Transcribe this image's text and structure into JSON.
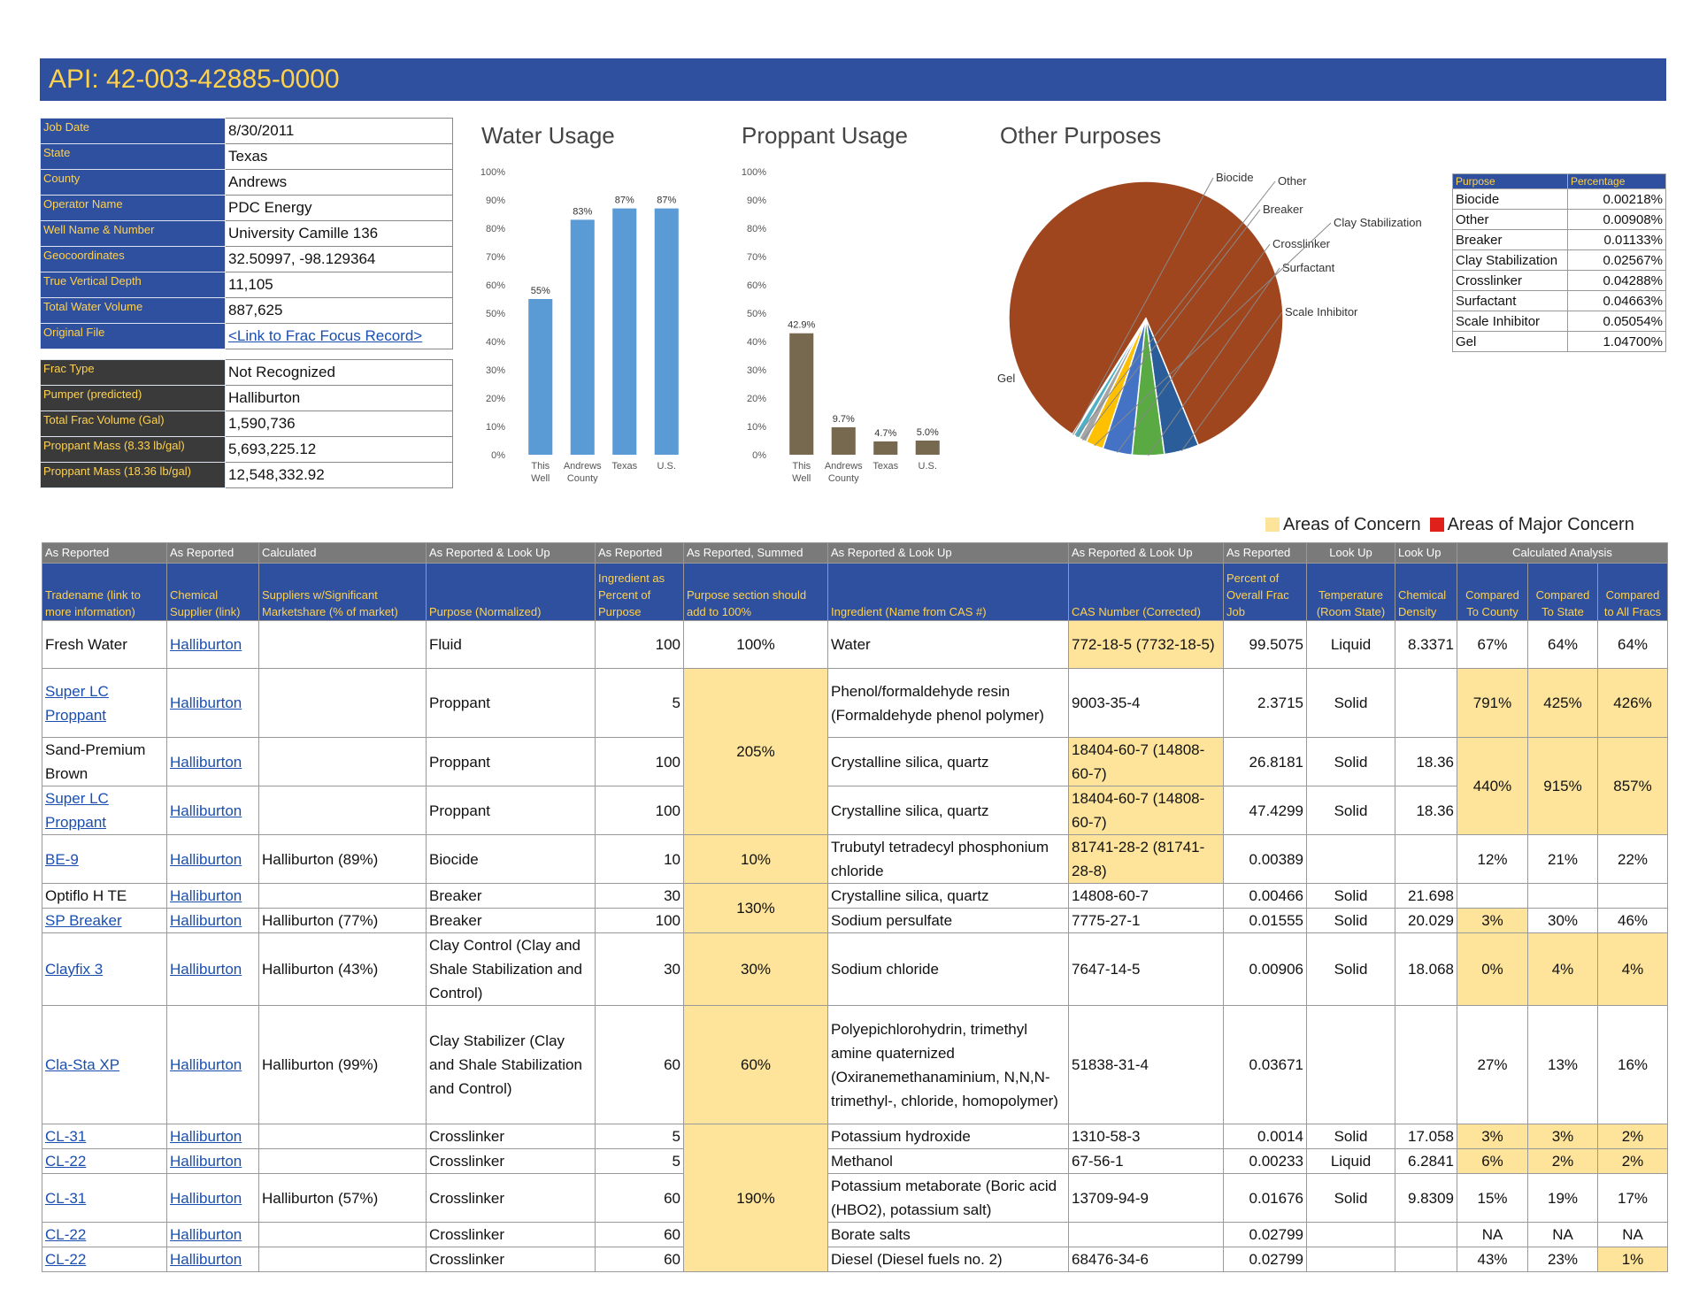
{
  "title": "API: 42-003-42885-0000",
  "info1": [
    {
      "label": "Job Date",
      "value": "8/30/2011"
    },
    {
      "label": "State",
      "value": "Texas"
    },
    {
      "label": "County",
      "value": "Andrews"
    },
    {
      "label": "Operator Name",
      "value": "PDC Energy"
    },
    {
      "label": "Well Name & Number",
      "value": "University Camille 136"
    },
    {
      "label": "Geocoordinates",
      "value": "32.50997, -98.129364"
    },
    {
      "label": "True Vertical Depth",
      "value": "11,105"
    },
    {
      "label": "Total Water Volume",
      "value": "887,625"
    },
    {
      "label": "Original File",
      "value": "<Link to Frac Focus Record>"
    }
  ],
  "info2": [
    {
      "label": "Frac Type",
      "value": "Not Recognized"
    },
    {
      "label": "Pumper (predicted)",
      "value": "Halliburton"
    },
    {
      "label": "Total Frac Volume (Gal)",
      "value": "1,590,736"
    },
    {
      "label": "Proppant Mass (8.33 lb/gal)",
      "value": "5,693,225.12"
    },
    {
      "label": "Proppant Mass (18.36 lb/gal)",
      "value": "12,548,332.92"
    }
  ],
  "chart_data": [
    {
      "type": "bar",
      "title": "Water Usage",
      "categories": [
        "This Well",
        "Andrews County",
        "Texas",
        "U.S."
      ],
      "values": [
        55,
        83,
        87,
        87
      ],
      "labels": [
        "55%",
        "83%",
        "87%",
        "87%"
      ],
      "ylim": [
        0,
        100
      ],
      "yticks": [
        "0%",
        "10%",
        "20%",
        "30%",
        "40%",
        "50%",
        "60%",
        "70%",
        "80%",
        "90%",
        "100%"
      ],
      "color": "#5b9bd5"
    },
    {
      "type": "bar",
      "title": "Proppant Usage",
      "categories": [
        "This Well",
        "Andrews County",
        "Texas",
        "U.S."
      ],
      "values": [
        42.9,
        9.7,
        4.7,
        5.0
      ],
      "labels": [
        "42.9%",
        "9.7%",
        "4.7%",
        "5.0%"
      ],
      "ylim": [
        0,
        100
      ],
      "yticks": [
        "0%",
        "10%",
        "20%",
        "30%",
        "40%",
        "50%",
        "60%",
        "70%",
        "80%",
        "90%",
        "100%"
      ],
      "color": "#76694f"
    },
    {
      "type": "pie",
      "title": "Other Purposes",
      "slices": [
        {
          "label": "Gel",
          "value": 1.047,
          "color": "#a0461f"
        },
        {
          "label": "Scale Inhibitor",
          "value": 0.05054,
          "color": "#2a5d9a"
        },
        {
          "label": "Surfactant",
          "value": 0.04663,
          "color": "#5aaa44"
        },
        {
          "label": "Crosslinker",
          "value": 0.04288,
          "color": "#4472c4"
        },
        {
          "label": "Clay Stabilization",
          "value": 0.02567,
          "color": "#ffc000"
        },
        {
          "label": "Breaker",
          "value": 0.01133,
          "color": "#a5a5a5"
        },
        {
          "label": "Other",
          "value": 0.00908,
          "color": "#4fb0c6"
        },
        {
          "label": "Biocide",
          "value": 0.00218,
          "color": "#ed7d31"
        }
      ]
    }
  ],
  "purpose_table": {
    "headers": [
      "Purpose",
      "Percentage"
    ],
    "rows": [
      [
        "Biocide",
        "0.00218%"
      ],
      [
        "Other",
        "0.00908%"
      ],
      [
        "Breaker",
        "0.01133%"
      ],
      [
        "Clay Stabilization",
        "0.02567%"
      ],
      [
        "Crosslinker",
        "0.04288%"
      ],
      [
        "Surfactant",
        "0.04663%"
      ],
      [
        "Scale Inhibitor",
        "0.05054%"
      ],
      [
        "Gel",
        "1.04700%"
      ]
    ]
  },
  "legend": {
    "concern": "Areas of Concern",
    "major": "Areas of Major Concern",
    "concern_color": "#fde49a",
    "major_color": "#e0201b"
  },
  "main": {
    "header1": [
      "As Reported",
      "As Reported",
      "Calculated",
      "As Reported & Look Up",
      "As Reported",
      "As Reported, Summed",
      "As Reported & Look Up",
      "As Reported & Look Up",
      "As Reported",
      "Look Up",
      "Look Up",
      "Calculated Analysis"
    ],
    "header2": [
      "Tradename (link to more information)",
      "Chemical Supplier (link)",
      "Suppliers w/Significant Marketshare (% of market)",
      "Purpose (Normalized)",
      "Ingredient as Percent of Purpose",
      "Purpose section should add to 100%",
      "Ingredient (Name from CAS #)",
      "CAS Number (Corrected)",
      "Percent of Overall Frac Job",
      "Temperature (Room State)",
      "Chemical Density",
      "Compared To County",
      "Compared To State",
      "Compared to All Fracs"
    ],
    "rows": [
      {
        "tradename": "Fresh Water",
        "supplier": "Halliburton",
        "share": "",
        "purpose": "Fluid",
        "pct": "100",
        "sum": "100%",
        "ingredient": "Water",
        "cas": "772-18-5 (7732-18-5)",
        "overall": "99.5075",
        "temp": "Liquid",
        "density": "8.3371",
        "county": "67%",
        "state": "64%",
        "all": "64%"
      },
      {
        "tradename": "Super LC Proppant",
        "supplier": "Halliburton",
        "share": "",
        "purpose": "Proppant",
        "pct": "5",
        "sum": "205%",
        "ingredient": "Phenol/formaldehyde resin (Formaldehyde phenol polymer)",
        "cas": "9003-35-4",
        "overall": "2.3715",
        "temp": "Solid",
        "density": "",
        "county": "791%",
        "state": "425%",
        "all": "426%"
      },
      {
        "tradename": "Sand-Premium Brown",
        "supplier": "Halliburton",
        "share": "",
        "purpose": "Proppant",
        "pct": "100",
        "ingredient": "Crystalline silica, quartz",
        "cas": "18404-60-7 (14808-60-7)",
        "overall": "26.8181",
        "temp": "Solid",
        "density": "18.36",
        "county": "440%",
        "state": "915%",
        "all": "857%"
      },
      {
        "tradename": "Super LC Proppant",
        "supplier": "Halliburton",
        "share": "",
        "purpose": "Proppant",
        "pct": "100",
        "ingredient": "Crystalline silica, quartz",
        "cas": "18404-60-7 (14808-60-7)",
        "overall": "47.4299",
        "temp": "Solid",
        "density": "18.36"
      },
      {
        "tradename": "BE-9",
        "supplier": "Halliburton",
        "share": "Halliburton (89%)",
        "purpose": "Biocide",
        "pct": "10",
        "sum": "10%",
        "ingredient": "Trubutyl tetradecyl phosphonium chloride",
        "cas": "81741-28-2 (81741-28-8)",
        "overall": "0.00389",
        "temp": "",
        "density": "",
        "county": "12%",
        "state": "21%",
        "all": "22%"
      },
      {
        "tradename": "Optiflo H TE",
        "supplier": "Halliburton",
        "share": "",
        "purpose": "Breaker",
        "pct": "30",
        "sum": "130%",
        "ingredient": "Crystalline silica, quartz",
        "cas": "14808-60-7",
        "overall": "0.00466",
        "temp": "Solid",
        "density": "21.698",
        "county": "",
        "state": "",
        "all": ""
      },
      {
        "tradename": "SP Breaker",
        "supplier": "Halliburton",
        "share": "Halliburton (77%)",
        "purpose": "Breaker",
        "pct": "100",
        "ingredient": "Sodium persulfate",
        "cas": "7775-27-1",
        "overall": "0.01555",
        "temp": "Solid",
        "density": "20.029",
        "county": "3%",
        "state": "30%",
        "all": "46%"
      },
      {
        "tradename": "Clayfix 3",
        "supplier": "Halliburton",
        "share": "Halliburton (43%)",
        "purpose": "Clay Control (Clay and Shale Stabilization and Control)",
        "pct": "30",
        "sum": "30%",
        "ingredient": "Sodium chloride",
        "cas": "7647-14-5",
        "overall": "0.00906",
        "temp": "Solid",
        "density": "18.068",
        "county": "0%",
        "state": "4%",
        "all": "4%"
      },
      {
        "tradename": "Cla-Sta XP",
        "supplier": "Halliburton",
        "share": "Halliburton (99%)",
        "purpose": "Clay Stabilizer (Clay and Shale Stabilization and Control)",
        "pct": "60",
        "sum": "60%",
        "ingredient": "Polyepichlorohydrin, trimethyl amine quaternized (Oxiranemethanaminium, N,N,N-trimethyl-, chloride, homopolymer)",
        "cas": "51838-31-4",
        "overall": "0.03671",
        "temp": "",
        "density": "",
        "county": "27%",
        "state": "13%",
        "all": "16%"
      },
      {
        "tradename": "CL-31",
        "supplier": "Halliburton",
        "share": "",
        "purpose": "Crosslinker",
        "pct": "5",
        "sum": "190%",
        "ingredient": "Potassium hydroxide",
        "cas": "1310-58-3",
        "overall": "0.0014",
        "temp": "Solid",
        "density": "17.058",
        "county": "3%",
        "state": "3%",
        "all": "2%"
      },
      {
        "tradename": "CL-22",
        "supplier": "Halliburton",
        "share": "",
        "purpose": "Crosslinker",
        "pct": "5",
        "ingredient": "Methanol",
        "cas": "67-56-1",
        "overall": "0.00233",
        "temp": "Liquid",
        "density": "6.2841",
        "county": "6%",
        "state": "2%",
        "all": "2%"
      },
      {
        "tradename": "CL-31",
        "supplier": "Halliburton",
        "share": "Halliburton (57%)",
        "purpose": "Crosslinker",
        "pct": "60",
        "ingredient": "Potassium metaborate (Boric acid (HBO2), potassium salt)",
        "cas": "13709-94-9",
        "overall": "0.01676",
        "temp": "Solid",
        "density": "9.8309",
        "county": "15%",
        "state": "19%",
        "all": "17%"
      },
      {
        "tradename": "CL-22",
        "supplier": "Halliburton",
        "share": "",
        "purpose": "Crosslinker",
        "pct": "60",
        "ingredient": "Borate salts",
        "cas": "",
        "overall": "0.02799",
        "temp": "",
        "density": "",
        "county": "NA",
        "state": "NA",
        "all": "NA"
      },
      {
        "tradename": "CL-22",
        "supplier": "Halliburton",
        "share": "",
        "purpose": "Crosslinker",
        "pct": "60",
        "ingredient": "Diesel (Diesel fuels no. 2)",
        "cas": "68476-34-6",
        "overall": "0.02799",
        "temp": "",
        "density": "",
        "county": "43%",
        "state": "23%",
        "all": "1%"
      }
    ]
  }
}
